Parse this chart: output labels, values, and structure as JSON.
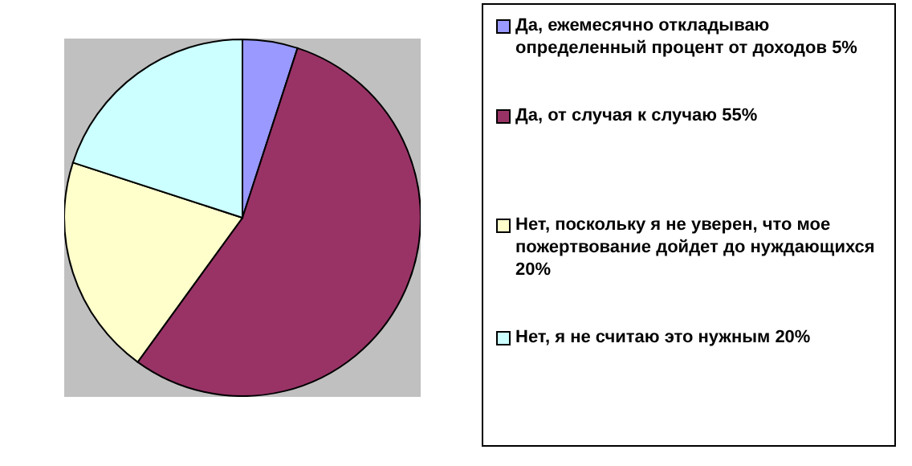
{
  "chart_data": {
    "type": "pie",
    "categories": [
      "Да, ежемесячно откладываю определенный процент от доходов 5%",
      "Да, от случая к случаю 55%",
      "Нет, поскольку я не уверен, что мое пожертвование дойдет до нуждающихся 20%",
      "Нет, я не считаю это нужным 20%"
    ],
    "values": [
      5,
      55,
      20,
      20
    ],
    "colors": [
      "#9999ff",
      "#993366",
      "#ffffcc",
      "#ccffff"
    ],
    "legend": "right"
  }
}
